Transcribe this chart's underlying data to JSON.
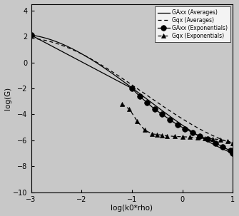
{
  "xlabel": "log(k0*rho)",
  "ylabel": "log(G)",
  "xlim": [
    -3.0,
    1.0
  ],
  "ylim": [
    -10.0,
    4.5
  ],
  "xticks": [
    -3.0,
    -2.0,
    -1.0,
    0.0,
    1.0
  ],
  "yticks": [
    -10.0,
    -8.0,
    -6.0,
    -4.0,
    -2.0,
    0.0,
    2.0,
    4.0
  ],
  "legend_order": [
    "Gqx (Averages)",
    "GAxx (Averages)",
    "GAxx (Exponentials)",
    "Gqx (Exponentials)"
  ],
  "background_color": "#c8c8c8",
  "line_color": "#000000",
  "GAxx_avg_pts_x": [
    -3.0,
    -2.0,
    -1.0,
    0.0,
    1.0
  ],
  "GAxx_avg_pts_y": [
    2.1,
    0.7,
    -2.0,
    -4.8,
    -7.0
  ],
  "Gqx_avg_pts_x": [
    -3.0,
    -2.0,
    -1.0,
    0.0,
    1.0
  ],
  "Gqx_avg_pts_y": [
    1.9,
    0.5,
    -1.5,
    -4.5,
    -6.2
  ],
  "GAxx_exp_marker_x": [
    -3.0,
    -1.0,
    -0.85,
    -0.7,
    -0.55,
    -0.4,
    -0.25,
    -0.1,
    0.05,
    0.2,
    0.35,
    0.5,
    0.65,
    0.8,
    0.95,
    1.0
  ],
  "GAxx_exp_marker_y": [
    2.1,
    -2.0,
    -2.6,
    -3.1,
    -3.6,
    -4.0,
    -4.4,
    -4.8,
    -5.1,
    -5.4,
    -5.7,
    -5.9,
    -6.2,
    -6.5,
    -6.8,
    -7.0
  ],
  "Gqx_exp_marker_x": [
    -1.2,
    -1.05,
    -0.9,
    -0.75,
    -0.6,
    -0.5,
    -0.4,
    -0.3,
    -0.15,
    0.0,
    0.15,
    0.3,
    0.45,
    0.6,
    0.75,
    0.9,
    1.0
  ],
  "Gqx_exp_marker_y": [
    -3.2,
    -3.6,
    -4.5,
    -5.2,
    -5.5,
    -5.55,
    -5.6,
    -5.65,
    -5.7,
    -5.72,
    -5.75,
    -5.78,
    -5.82,
    -5.88,
    -5.95,
    -6.05,
    -6.2
  ]
}
